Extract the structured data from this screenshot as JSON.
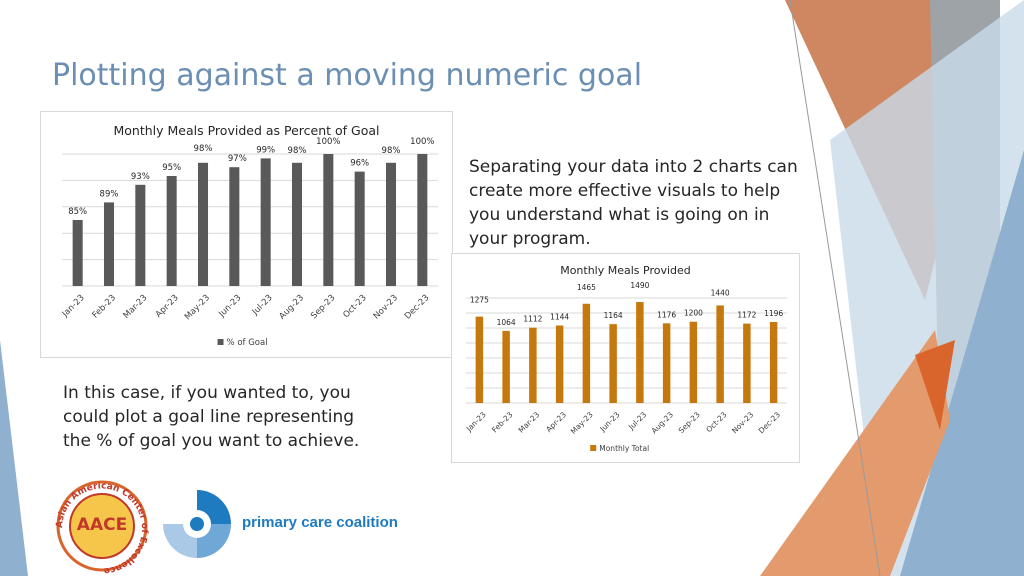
{
  "slide": {
    "title": "Plotting against a moving numeric goal",
    "text_right": "Separating your data into 2 charts can create more effective visuals to help you understand what is going on in your program.",
    "text_left": "In this case, if you wanted to, you could plot a goal line representing the % of goal you want to achieve."
  },
  "logos": {
    "aace_text": "AACE",
    "aace_ring_text": "Asian American Center of Excellence",
    "pcc_text": "primary care coalition"
  },
  "colors": {
    "title": "#6b8fb3",
    "chart1_bar": "#595959",
    "chart2_bar": "#c5780e",
    "deco_orange": "#d9844b",
    "deco_blue": "#8fb1cf",
    "deco_gray": "#9ea3a8"
  },
  "chart_data": [
    {
      "type": "bar",
      "title": "Monthly Meals Provided as Percent of Goal",
      "categories": [
        "Jan-23",
        "Feb-23",
        "Mar-23",
        "Apr-23",
        "May-23",
        "Jun-23",
        "Jul-23",
        "Aug-23",
        "Sep-23",
        "Oct-23",
        "Nov-23",
        "Dec-23"
      ],
      "series": [
        {
          "name": "% of Goal",
          "values": [
            85,
            89,
            93,
            95,
            98,
            97,
            99,
            98,
            100,
            96,
            98,
            100
          ]
        }
      ],
      "value_suffix": "%",
      "ylim": [
        70,
        100
      ],
      "grid": true,
      "legend": "bottom"
    },
    {
      "type": "bar",
      "title": "Monthly Meals Provided",
      "categories": [
        "Jan-23",
        "Feb-23",
        "Mar-23",
        "Apr-23",
        "May-23",
        "Jun-23",
        "Jul-23",
        "Aug-23",
        "Sep-23",
        "Oct-23",
        "Nov-23",
        "Dec-23"
      ],
      "series": [
        {
          "name": "Monthly Total",
          "values": [
            1275,
            1064,
            1112,
            1144,
            1465,
            1164,
            1490,
            1176,
            1200,
            1440,
            1172,
            1196
          ]
        }
      ],
      "value_suffix": "",
      "ylim": [
        0,
        1550
      ],
      "grid": true,
      "legend": "bottom"
    }
  ]
}
